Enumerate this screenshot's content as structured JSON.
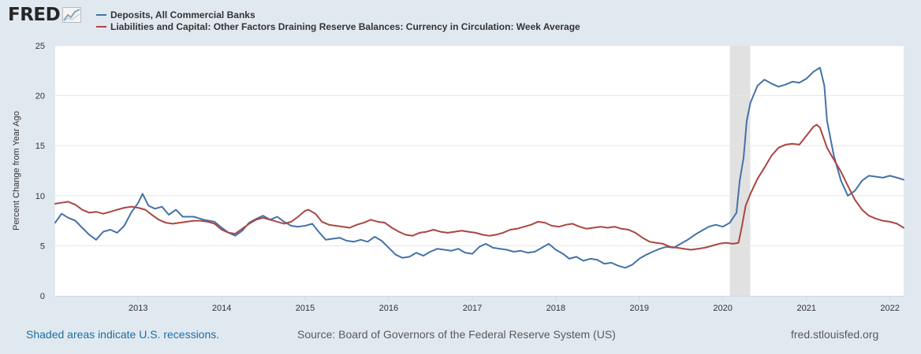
{
  "brand": {
    "name": "FRED",
    "icon": "chart-line-icon"
  },
  "colors": {
    "page_bg": "#e1e9f0",
    "plot_bg": "#ffffff",
    "grid": "#e6e6e6",
    "recession": "#e1e1e1",
    "series1": "#4572a7",
    "series2": "#aa4643"
  },
  "chart_data": {
    "type": "line",
    "title": "",
    "xlabel": "",
    "ylabel": "Percent Change from Year Ago",
    "ylim": [
      0,
      25
    ],
    "xlim": [
      "2012-01-04",
      "2022-03-02"
    ],
    "yticks": [
      "0",
      "5",
      "10",
      "15",
      "20",
      "25"
    ],
    "xticks": [
      "2013",
      "2014",
      "2015",
      "2016",
      "2017",
      "2018",
      "2019",
      "2020",
      "2021",
      "2022"
    ],
    "grid": true,
    "legend_position": "top-left",
    "recession_shading": [
      {
        "start": "2020-02-01",
        "end": "2020-04-30"
      }
    ],
    "series": [
      {
        "name": "Deposits, All Commercial Banks",
        "color": "#4572a7",
        "points": [
          [
            "2012-01-04",
            7.3
          ],
          [
            "2012-02-01",
            8.2
          ],
          [
            "2012-03-01",
            7.8
          ],
          [
            "2012-04-01",
            7.5
          ],
          [
            "2012-05-01",
            6.8
          ],
          [
            "2012-06-01",
            6.1
          ],
          [
            "2012-07-01",
            5.6
          ],
          [
            "2012-08-01",
            6.4
          ],
          [
            "2012-09-01",
            6.6
          ],
          [
            "2012-10-01",
            6.3
          ],
          [
            "2012-11-01",
            7.0
          ],
          [
            "2012-12-01",
            8.3
          ],
          [
            "2013-01-01",
            9.3
          ],
          [
            "2013-01-20",
            10.2
          ],
          [
            "2013-02-15",
            9.0
          ],
          [
            "2013-03-15",
            8.7
          ],
          [
            "2013-04-15",
            8.9
          ],
          [
            "2013-05-15",
            8.1
          ],
          [
            "2013-06-15",
            8.6
          ],
          [
            "2013-07-15",
            7.9
          ],
          [
            "2013-09-01",
            7.9
          ],
          [
            "2013-10-15",
            7.6
          ],
          [
            "2013-12-01",
            7.4
          ],
          [
            "2014-01-01",
            6.8
          ],
          [
            "2014-02-01",
            6.3
          ],
          [
            "2014-03-01",
            6.0
          ],
          [
            "2014-04-01",
            6.5
          ],
          [
            "2014-05-01",
            7.3
          ],
          [
            "2014-06-01",
            7.7
          ],
          [
            "2014-07-01",
            8.0
          ],
          [
            "2014-08-01",
            7.6
          ],
          [
            "2014-09-01",
            7.9
          ],
          [
            "2014-10-01",
            7.4
          ],
          [
            "2014-11-01",
            7.0
          ],
          [
            "2014-12-01",
            6.9
          ],
          [
            "2015-01-01",
            7.0
          ],
          [
            "2015-02-01",
            7.2
          ],
          [
            "2015-03-01",
            6.4
          ],
          [
            "2015-04-01",
            5.6
          ],
          [
            "2015-05-01",
            5.7
          ],
          [
            "2015-06-01",
            5.8
          ],
          [
            "2015-07-01",
            5.5
          ],
          [
            "2015-08-01",
            5.4
          ],
          [
            "2015-09-01",
            5.6
          ],
          [
            "2015-10-01",
            5.4
          ],
          [
            "2015-11-01",
            5.9
          ],
          [
            "2015-12-01",
            5.5
          ],
          [
            "2016-01-01",
            4.8
          ],
          [
            "2016-02-01",
            4.1
          ],
          [
            "2016-03-01",
            3.8
          ],
          [
            "2016-04-01",
            3.9
          ],
          [
            "2016-05-01",
            4.3
          ],
          [
            "2016-06-01",
            4.0
          ],
          [
            "2016-07-01",
            4.4
          ],
          [
            "2016-08-01",
            4.7
          ],
          [
            "2016-09-01",
            4.6
          ],
          [
            "2016-10-01",
            4.5
          ],
          [
            "2016-11-01",
            4.7
          ],
          [
            "2016-12-01",
            4.3
          ],
          [
            "2017-01-01",
            4.2
          ],
          [
            "2017-02-01",
            4.9
          ],
          [
            "2017-03-01",
            5.2
          ],
          [
            "2017-04-01",
            4.8
          ],
          [
            "2017-05-01",
            4.7
          ],
          [
            "2017-06-01",
            4.6
          ],
          [
            "2017-07-01",
            4.4
          ],
          [
            "2017-08-01",
            4.5
          ],
          [
            "2017-09-01",
            4.3
          ],
          [
            "2017-10-01",
            4.4
          ],
          [
            "2017-11-01",
            4.8
          ],
          [
            "2017-12-01",
            5.2
          ],
          [
            "2018-01-01",
            4.6
          ],
          [
            "2018-02-01",
            4.2
          ],
          [
            "2018-03-01",
            3.7
          ],
          [
            "2018-04-01",
            3.9
          ],
          [
            "2018-05-01",
            3.5
          ],
          [
            "2018-06-01",
            3.7
          ],
          [
            "2018-07-01",
            3.6
          ],
          [
            "2018-08-01",
            3.2
          ],
          [
            "2018-09-01",
            3.3
          ],
          [
            "2018-10-01",
            3.0
          ],
          [
            "2018-11-01",
            2.8
          ],
          [
            "2018-12-01",
            3.1
          ],
          [
            "2019-01-01",
            3.7
          ],
          [
            "2019-02-01",
            4.1
          ],
          [
            "2019-03-01",
            4.4
          ],
          [
            "2019-04-01",
            4.7
          ],
          [
            "2019-05-01",
            4.9
          ],
          [
            "2019-06-01",
            4.8
          ],
          [
            "2019-07-01",
            5.2
          ],
          [
            "2019-08-01",
            5.6
          ],
          [
            "2019-09-01",
            6.1
          ],
          [
            "2019-10-01",
            6.5
          ],
          [
            "2019-11-01",
            6.9
          ],
          [
            "2019-12-01",
            7.1
          ],
          [
            "2020-01-01",
            6.9
          ],
          [
            "2020-02-01",
            7.3
          ],
          [
            "2020-03-01",
            8.3
          ],
          [
            "2020-03-15",
            11.5
          ],
          [
            "2020-04-01",
            13.8
          ],
          [
            "2020-04-15",
            17.5
          ],
          [
            "2020-05-01",
            19.3
          ],
          [
            "2020-06-01",
            21.0
          ],
          [
            "2020-07-01",
            21.6
          ],
          [
            "2020-08-01",
            21.2
          ],
          [
            "2020-09-01",
            20.9
          ],
          [
            "2020-10-01",
            21.1
          ],
          [
            "2020-11-01",
            21.4
          ],
          [
            "2020-12-01",
            21.3
          ],
          [
            "2021-01-01",
            21.7
          ],
          [
            "2021-02-01",
            22.4
          ],
          [
            "2021-03-01",
            22.8
          ],
          [
            "2021-03-20",
            21.0
          ],
          [
            "2021-04-01",
            17.5
          ],
          [
            "2021-05-01",
            14.0
          ],
          [
            "2021-06-01",
            11.5
          ],
          [
            "2021-07-01",
            10.0
          ],
          [
            "2021-08-01",
            10.5
          ],
          [
            "2021-09-01",
            11.5
          ],
          [
            "2021-10-01",
            12.0
          ],
          [
            "2021-11-01",
            11.9
          ],
          [
            "2021-12-01",
            11.8
          ],
          [
            "2022-01-01",
            12.0
          ],
          [
            "2022-02-01",
            11.8
          ],
          [
            "2022-03-02",
            11.6
          ]
        ]
      },
      {
        "name": "Liabilities and Capital: Other Factors Draining Reserve Balances: Currency in Circulation: Week Average",
        "color": "#aa4643",
        "points": [
          [
            "2012-01-04",
            9.2
          ],
          [
            "2012-02-01",
            9.3
          ],
          [
            "2012-03-01",
            9.4
          ],
          [
            "2012-04-01",
            9.1
          ],
          [
            "2012-05-01",
            8.6
          ],
          [
            "2012-06-01",
            8.3
          ],
          [
            "2012-07-01",
            8.4
          ],
          [
            "2012-08-01",
            8.2
          ],
          [
            "2012-09-01",
            8.4
          ],
          [
            "2012-10-01",
            8.6
          ],
          [
            "2012-11-01",
            8.8
          ],
          [
            "2012-12-01",
            8.9
          ],
          [
            "2013-01-01",
            8.8
          ],
          [
            "2013-02-01",
            8.6
          ],
          [
            "2013-03-01",
            8.1
          ],
          [
            "2013-04-01",
            7.6
          ],
          [
            "2013-05-01",
            7.3
          ],
          [
            "2013-06-01",
            7.2
          ],
          [
            "2013-07-01",
            7.3
          ],
          [
            "2013-08-01",
            7.4
          ],
          [
            "2013-09-01",
            7.5
          ],
          [
            "2013-10-01",
            7.5
          ],
          [
            "2013-11-01",
            7.4
          ],
          [
            "2013-12-01",
            7.2
          ],
          [
            "2014-01-01",
            6.6
          ],
          [
            "2014-02-01",
            6.3
          ],
          [
            "2014-03-01",
            6.2
          ],
          [
            "2014-04-01",
            6.7
          ],
          [
            "2014-05-01",
            7.2
          ],
          [
            "2014-06-01",
            7.6
          ],
          [
            "2014-07-01",
            7.8
          ],
          [
            "2014-08-01",
            7.6
          ],
          [
            "2014-09-01",
            7.4
          ],
          [
            "2014-10-01",
            7.2
          ],
          [
            "2014-11-01",
            7.4
          ],
          [
            "2014-12-01",
            7.9
          ],
          [
            "2015-01-01",
            8.5
          ],
          [
            "2015-01-15",
            8.6
          ],
          [
            "2015-02-15",
            8.2
          ],
          [
            "2015-03-15",
            7.4
          ],
          [
            "2015-04-15",
            7.1
          ],
          [
            "2015-05-15",
            7.0
          ],
          [
            "2015-06-15",
            6.9
          ],
          [
            "2015-07-15",
            6.8
          ],
          [
            "2015-08-15",
            7.1
          ],
          [
            "2015-09-15",
            7.3
          ],
          [
            "2015-10-15",
            7.6
          ],
          [
            "2015-11-15",
            7.4
          ],
          [
            "2015-12-15",
            7.3
          ],
          [
            "2016-01-15",
            6.8
          ],
          [
            "2016-02-15",
            6.4
          ],
          [
            "2016-03-15",
            6.1
          ],
          [
            "2016-04-15",
            6.0
          ],
          [
            "2016-05-15",
            6.3
          ],
          [
            "2016-06-15",
            6.4
          ],
          [
            "2016-07-15",
            6.6
          ],
          [
            "2016-08-15",
            6.4
          ],
          [
            "2016-09-15",
            6.3
          ],
          [
            "2016-10-15",
            6.4
          ],
          [
            "2016-11-15",
            6.5
          ],
          [
            "2016-12-15",
            6.4
          ],
          [
            "2017-01-15",
            6.3
          ],
          [
            "2017-02-15",
            6.1
          ],
          [
            "2017-03-15",
            6.0
          ],
          [
            "2017-04-15",
            6.1
          ],
          [
            "2017-05-15",
            6.3
          ],
          [
            "2017-06-15",
            6.6
          ],
          [
            "2017-07-15",
            6.7
          ],
          [
            "2017-08-15",
            6.9
          ],
          [
            "2017-09-15",
            7.1
          ],
          [
            "2017-10-15",
            7.4
          ],
          [
            "2017-11-15",
            7.3
          ],
          [
            "2017-12-15",
            7.0
          ],
          [
            "2018-01-15",
            6.9
          ],
          [
            "2018-02-15",
            7.1
          ],
          [
            "2018-03-15",
            7.2
          ],
          [
            "2018-04-15",
            6.9
          ],
          [
            "2018-05-15",
            6.7
          ],
          [
            "2018-06-15",
            6.8
          ],
          [
            "2018-07-15",
            6.9
          ],
          [
            "2018-08-15",
            6.8
          ],
          [
            "2018-09-15",
            6.9
          ],
          [
            "2018-10-15",
            6.7
          ],
          [
            "2018-11-15",
            6.6
          ],
          [
            "2018-12-15",
            6.3
          ],
          [
            "2019-01-15",
            5.8
          ],
          [
            "2019-02-15",
            5.4
          ],
          [
            "2019-03-15",
            5.3
          ],
          [
            "2019-04-15",
            5.2
          ],
          [
            "2019-05-15",
            4.9
          ],
          [
            "2019-06-15",
            4.8
          ],
          [
            "2019-07-15",
            4.7
          ],
          [
            "2019-08-15",
            4.6
          ],
          [
            "2019-09-15",
            4.7
          ],
          [
            "2019-10-15",
            4.8
          ],
          [
            "2019-11-15",
            5.0
          ],
          [
            "2019-12-15",
            5.2
          ],
          [
            "2020-01-15",
            5.3
          ],
          [
            "2020-02-15",
            5.2
          ],
          [
            "2020-03-10",
            5.3
          ],
          [
            "2020-03-25",
            7.0
          ],
          [
            "2020-04-10",
            9.0
          ],
          [
            "2020-05-01",
            10.2
          ],
          [
            "2020-06-01",
            11.7
          ],
          [
            "2020-07-01",
            12.8
          ],
          [
            "2020-08-01",
            14.0
          ],
          [
            "2020-09-01",
            14.8
          ],
          [
            "2020-10-01",
            15.1
          ],
          [
            "2020-11-01",
            15.2
          ],
          [
            "2020-12-01",
            15.1
          ],
          [
            "2021-01-01",
            16.0
          ],
          [
            "2021-02-01",
            16.9
          ],
          [
            "2021-02-15",
            17.1
          ],
          [
            "2021-03-01",
            16.8
          ],
          [
            "2021-04-01",
            14.8
          ],
          [
            "2021-05-01",
            13.6
          ],
          [
            "2021-06-01",
            12.4
          ],
          [
            "2021-07-01",
            11.0
          ],
          [
            "2021-08-01",
            9.6
          ],
          [
            "2021-09-01",
            8.6
          ],
          [
            "2021-10-01",
            8.0
          ],
          [
            "2021-11-01",
            7.7
          ],
          [
            "2021-12-01",
            7.5
          ],
          [
            "2022-01-01",
            7.4
          ],
          [
            "2022-02-01",
            7.2
          ],
          [
            "2022-03-02",
            6.8
          ]
        ]
      }
    ]
  },
  "footer": {
    "recession_note": "Shaded areas indicate U.S. recessions.",
    "source": "Source: Board of Governors of the Federal Reserve System (US)",
    "url": "fred.stlouisfed.org"
  }
}
